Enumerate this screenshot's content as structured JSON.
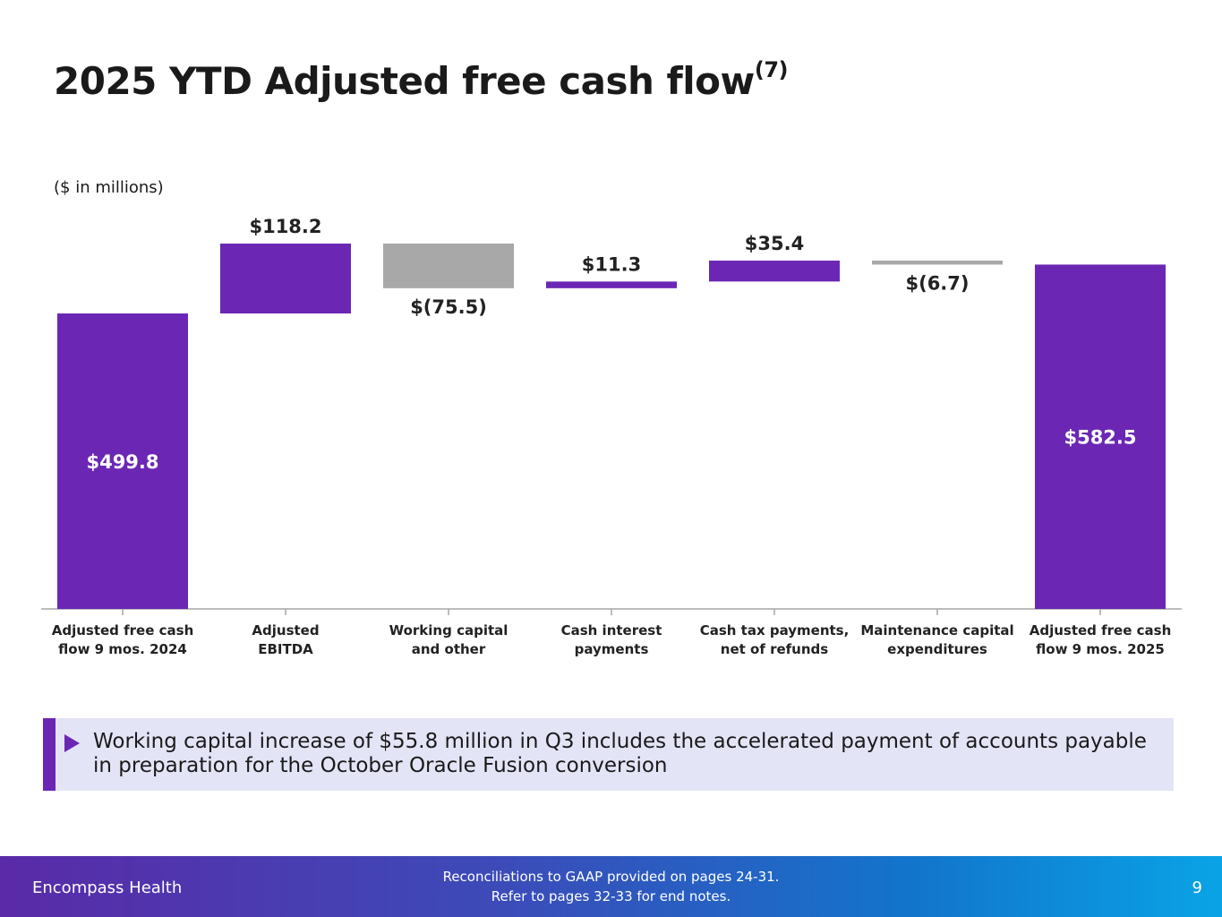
{
  "title": {
    "text": "2025 YTD Adjusted free cash flow",
    "sup": "(7)"
  },
  "units_label": "($ in millions)",
  "chart_data": {
    "type": "bar",
    "subtype": "waterfall",
    "title": "",
    "xlabel": "",
    "ylabel": "",
    "categories": [
      "Adjusted free cash flow 9 mos. 2024",
      "Adjusted EBITDA",
      "Working capital and other",
      "Cash interest payments",
      "Cash tax payments, net of refunds",
      "Maintenance capital expenditures",
      "Adjusted free cash flow 9 mos. 2025"
    ],
    "category_lines": [
      [
        "Adjusted free cash",
        "flow 9 mos. 2024"
      ],
      [
        "Adjusted",
        "EBITDA"
      ],
      [
        "Working capital",
        "and other"
      ],
      [
        "Cash interest",
        "payments"
      ],
      [
        "Cash tax payments,",
        "net of refunds"
      ],
      [
        "Maintenance capital",
        "expenditures"
      ],
      [
        "Adjusted free cash",
        "flow 9 mos. 2025"
      ]
    ],
    "values": [
      499.8,
      118.2,
      -75.5,
      11.3,
      35.4,
      -6.7,
      582.5
    ],
    "kinds": [
      "total",
      "increase",
      "decrease",
      "increase",
      "increase",
      "decrease",
      "total"
    ],
    "data_labels": [
      "$499.8",
      "$118.2",
      "$(75.5)",
      "$11.3",
      "$35.4",
      "$(6.7)",
      "$582.5"
    ],
    "ylim": [
      0,
      640
    ],
    "grid": false,
    "legend": "none",
    "colors": {
      "total": "#6b27b4",
      "increase": "#6b27b4",
      "decrease": "#a8a8a8",
      "axis": "#a6a6a6",
      "total_label": "#ffffff",
      "label": "#222222"
    }
  },
  "callout": {
    "text": "Working capital increase of $55.8 million in Q3 includes the accelerated payment of accounts payable in preparation for the October Oracle Fusion conversion",
    "icon": "triangle-bullet-icon"
  },
  "footer": {
    "brand": "Encompass Health",
    "note_line1": "Reconciliations to GAAP provided on pages 24-31.",
    "note_line2": "Refer to pages 32-33 for end notes.",
    "page": "9"
  }
}
